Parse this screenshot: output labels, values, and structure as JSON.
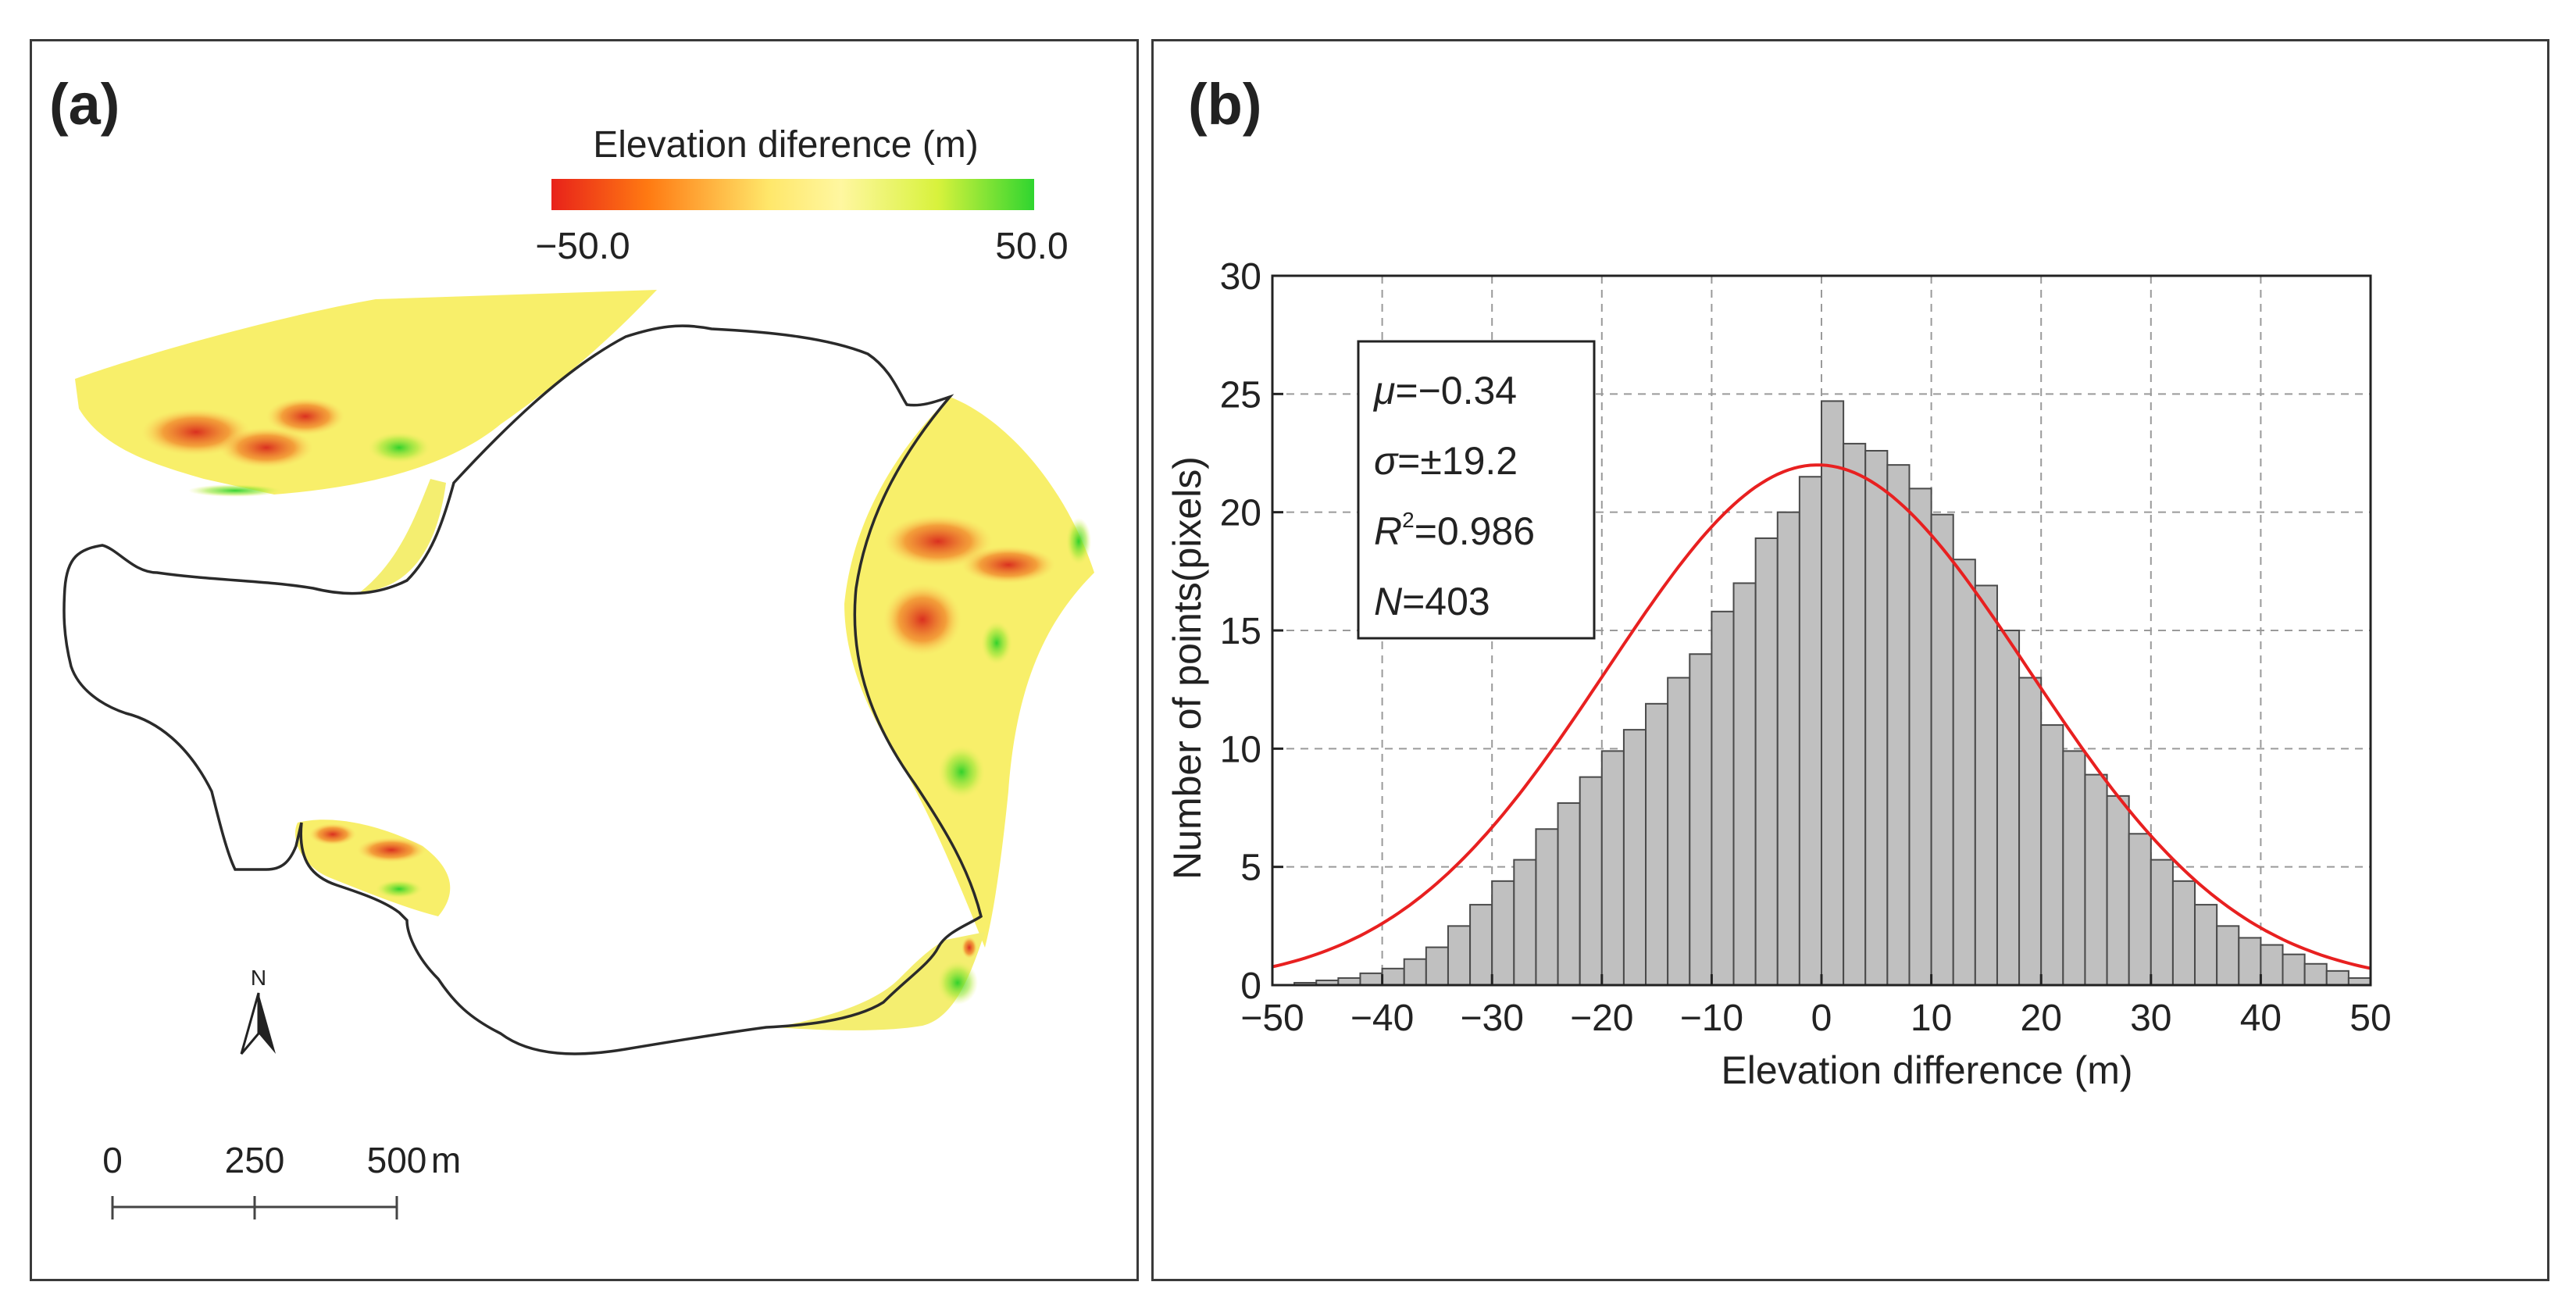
{
  "panel_a": {
    "label": "(a)",
    "legend": {
      "title": "Elevation diference (m)",
      "min_label": "−50.0",
      "max_label": "50.0",
      "colors": [
        "#e8221a",
        "#ff7a12",
        "#ffe76a",
        "#fff7a0",
        "#d8f23c",
        "#2fd52f"
      ]
    },
    "north_arrow": {
      "label": "N"
    },
    "scale_bar": {
      "ticks": [
        "0",
        "250",
        "500"
      ],
      "unit": "m"
    }
  },
  "panel_b": {
    "label": "(b)",
    "stats": {
      "mu": {
        "symbol": "μ",
        "value": "=−0.34"
      },
      "sigma": {
        "symbol": "σ",
        "value": "=±19.2"
      },
      "r2": {
        "symbol": "R",
        "sup": "2",
        "value": "=0.986"
      },
      "n": {
        "symbol": "N",
        "value": "=403"
      }
    }
  },
  "chart_data": {
    "type": "bar",
    "subtype": "histogram with fitted normal curve",
    "xlabel": "Elevation difference (m)",
    "ylabel": "Number of points(pixels)",
    "xlim": [
      -50,
      50
    ],
    "ylim": [
      0,
      30
    ],
    "x_ticks": [
      -50,
      -40,
      -30,
      -20,
      -10,
      0,
      10,
      20,
      30,
      40,
      50
    ],
    "y_ticks": [
      0,
      5,
      10,
      15,
      20,
      25,
      30
    ],
    "grid": true,
    "bin_width": 2,
    "bins": [
      {
        "x0": -48,
        "x1": -46,
        "y": 0.1
      },
      {
        "x0": -46,
        "x1": -44,
        "y": 0.2
      },
      {
        "x0": -44,
        "x1": -42,
        "y": 0.3
      },
      {
        "x0": -42,
        "x1": -40,
        "y": 0.5
      },
      {
        "x0": -40,
        "x1": -38,
        "y": 0.7
      },
      {
        "x0": -38,
        "x1": -36,
        "y": 1.1
      },
      {
        "x0": -36,
        "x1": -34,
        "y": 1.6
      },
      {
        "x0": -34,
        "x1": -32,
        "y": 2.5
      },
      {
        "x0": -32,
        "x1": -30,
        "y": 3.4
      },
      {
        "x0": -30,
        "x1": -28,
        "y": 4.4
      },
      {
        "x0": -28,
        "x1": -26,
        "y": 5.3
      },
      {
        "x0": -26,
        "x1": -24,
        "y": 6.6
      },
      {
        "x0": -24,
        "x1": -22,
        "y": 7.7
      },
      {
        "x0": -22,
        "x1": -20,
        "y": 8.8
      },
      {
        "x0": -20,
        "x1": -18,
        "y": 9.9
      },
      {
        "x0": -18,
        "x1": -16,
        "y": 10.8
      },
      {
        "x0": -16,
        "x1": -14,
        "y": 11.9
      },
      {
        "x0": -14,
        "x1": -12,
        "y": 13.0
      },
      {
        "x0": -12,
        "x1": -10,
        "y": 14.0
      },
      {
        "x0": -10,
        "x1": -8,
        "y": 15.8
      },
      {
        "x0": -8,
        "x1": -6,
        "y": 17.0
      },
      {
        "x0": -6,
        "x1": -4,
        "y": 18.9
      },
      {
        "x0": -4,
        "x1": -2,
        "y": 20.0
      },
      {
        "x0": -2,
        "x1": 0,
        "y": 21.5
      },
      {
        "x0": 0,
        "x1": 2,
        "y": 24.7
      },
      {
        "x0": 2,
        "x1": 4,
        "y": 22.9
      },
      {
        "x0": 4,
        "x1": 6,
        "y": 22.6
      },
      {
        "x0": 6,
        "x1": 8,
        "y": 22.0
      },
      {
        "x0": 8,
        "x1": 10,
        "y": 21.0
      },
      {
        "x0": 10,
        "x1": 12,
        "y": 19.9
      },
      {
        "x0": 12,
        "x1": 14,
        "y": 18.0
      },
      {
        "x0": 14,
        "x1": 16,
        "y": 16.9
      },
      {
        "x0": 16,
        "x1": 18,
        "y": 15.0
      },
      {
        "x0": 18,
        "x1": 20,
        "y": 13.0
      },
      {
        "x0": 20,
        "x1": 22,
        "y": 11.0
      },
      {
        "x0": 22,
        "x1": 24,
        "y": 9.9
      },
      {
        "x0": 24,
        "x1": 26,
        "y": 8.9
      },
      {
        "x0": 26,
        "x1": 28,
        "y": 8.0
      },
      {
        "x0": 28,
        "x1": 30,
        "y": 6.4
      },
      {
        "x0": 30,
        "x1": 32,
        "y": 5.3
      },
      {
        "x0": 32,
        "x1": 34,
        "y": 4.4
      },
      {
        "x0": 34,
        "x1": 36,
        "y": 3.4
      },
      {
        "x0": 36,
        "x1": 38,
        "y": 2.5
      },
      {
        "x0": 38,
        "x1": 40,
        "y": 2.0
      },
      {
        "x0": 40,
        "x1": 42,
        "y": 1.7
      },
      {
        "x0": 42,
        "x1": 44,
        "y": 1.3
      },
      {
        "x0": 44,
        "x1": 46,
        "y": 0.9
      },
      {
        "x0": 46,
        "x1": 48,
        "y": 0.6
      },
      {
        "x0": 48,
        "x1": 50,
        "y": 0.3
      }
    ],
    "fit_curve": {
      "name": "",
      "type": "normal",
      "mean": -0.34,
      "sd": 19.2,
      "peak": 22.0
    },
    "bar_color": "#c0c0c0",
    "curve_color": "#e82020"
  }
}
